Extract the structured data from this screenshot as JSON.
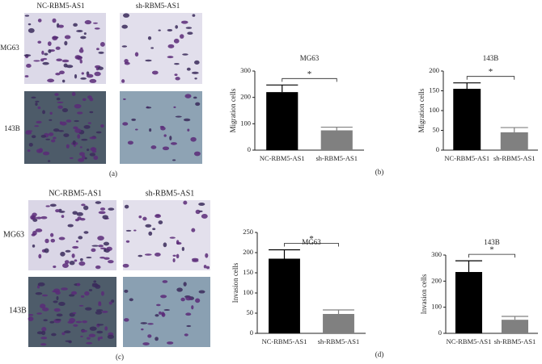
{
  "panels": {
    "a": {
      "label": "(a)",
      "columns": [
        "NC-RBM5-AS1",
        "sh-RBM5-AS1"
      ],
      "rows": [
        "MG63",
        "143B"
      ]
    },
    "b": {
      "label": "(b)"
    },
    "c": {
      "label": "(c)",
      "columns": [
        "NC-RBM5-AS1",
        "sh-RBM5-AS1"
      ],
      "rows": [
        "MG63",
        "143B"
      ]
    },
    "d": {
      "label": "(d)"
    }
  },
  "chart_data": [
    {
      "type": "bar",
      "title": "MG63",
      "y_label": "Migration cells",
      "categories": [
        "NC-RBM5-AS1",
        "sh-RBM5-AS1"
      ],
      "values": [
        220,
        75
      ],
      "errors": [
        27,
        12
      ],
      "colors": [
        "#000000",
        "#808080"
      ],
      "ylim": [
        0,
        300
      ],
      "yticks": [
        0,
        100,
        200,
        300
      ],
      "annotation": "*"
    },
    {
      "type": "bar",
      "title": "143B",
      "y_label": "Migration cells",
      "categories": [
        "NC-RBM5-AS1",
        "sh-RBM5-AS1"
      ],
      "values": [
        155,
        45
      ],
      "errors": [
        15,
        12
      ],
      "colors": [
        "#000000",
        "#808080"
      ],
      "ylim": [
        0,
        200
      ],
      "yticks": [
        0,
        50,
        100,
        150,
        200
      ],
      "annotation": "*"
    },
    {
      "type": "bar",
      "title": "MG63",
      "y_label": "Invasion cells",
      "categories": [
        "NC-RBM5-AS1",
        "sh-RBM5-AS1"
      ],
      "values": [
        185,
        48
      ],
      "errors": [
        22,
        10
      ],
      "colors": [
        "#000000",
        "#808080"
      ],
      "ylim": [
        0,
        250
      ],
      "yticks": [
        0,
        50,
        100,
        150,
        200,
        250
      ],
      "annotation": "*"
    },
    {
      "type": "bar",
      "title": "143B",
      "y_label": "Invasion cells",
      "categories": [
        "NC-RBM5-AS1",
        "sh-RBM5-AS1"
      ],
      "values": [
        235,
        52
      ],
      "errors": [
        43,
        13
      ],
      "colors": [
        "#000000",
        "#808080"
      ],
      "ylim": [
        0,
        300
      ],
      "yticks": [
        0,
        100,
        200,
        300
      ],
      "annotation": "*"
    }
  ]
}
